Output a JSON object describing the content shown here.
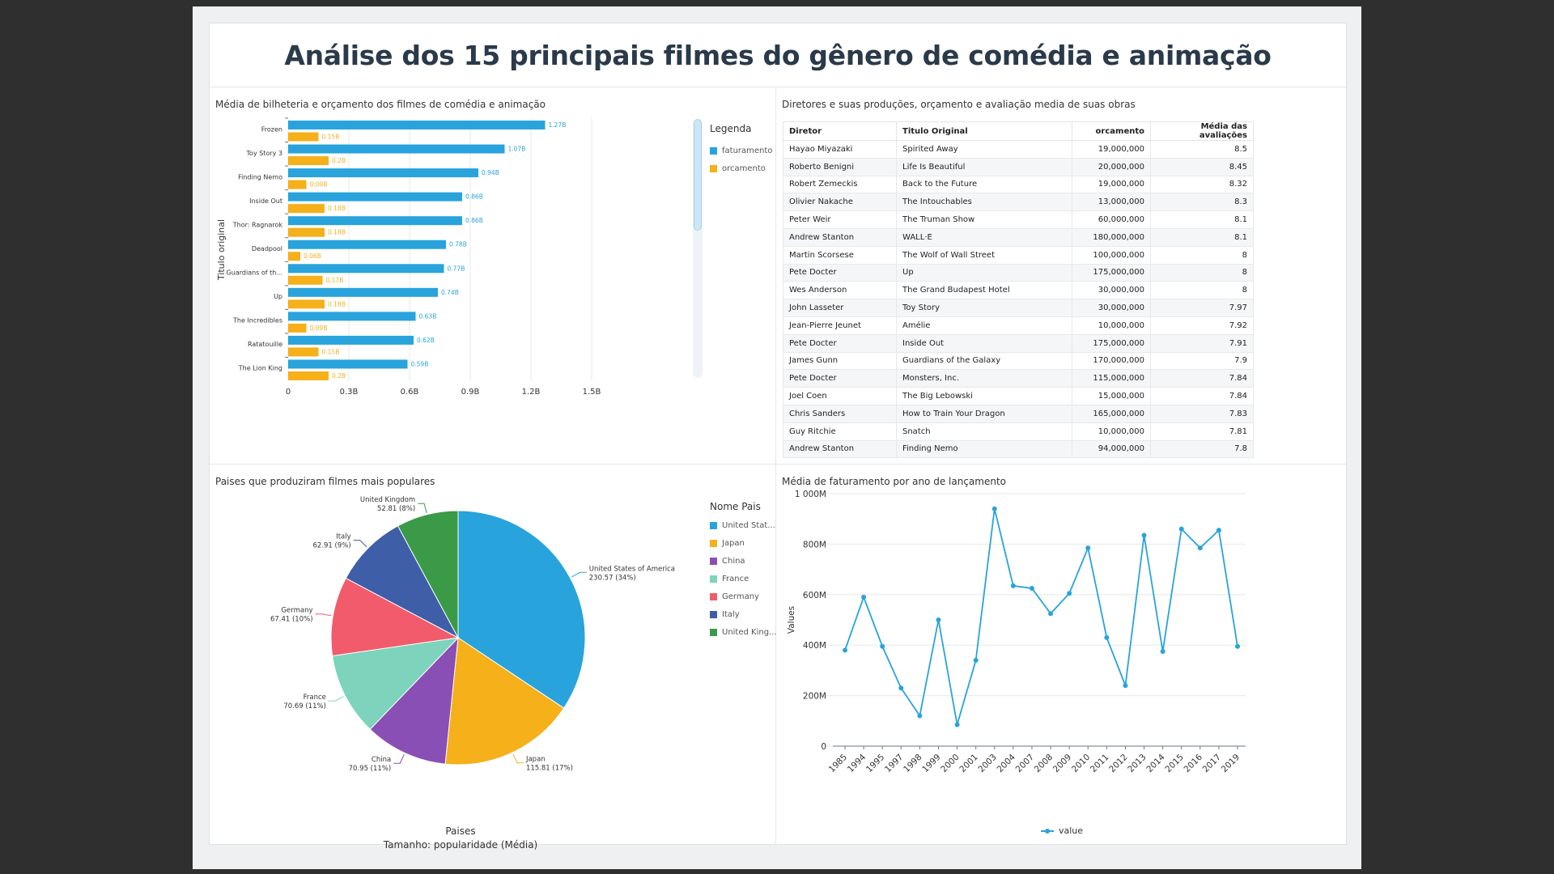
{
  "dashboard": {
    "title": "Análise dos 15 principais filmes do gênero de comédia e animação"
  },
  "bar_panel": {
    "title": "Média de bilheteria e orçamento dos filmes de comédia e animação",
    "legend_title": "Legenda"
  },
  "table_panel": {
    "title": "Diretores e suas produções, orçamento e avaliação media de suas obras",
    "columns": [
      "Diretor",
      "Titulo Original",
      "orcamento",
      "Média das avaliações"
    ],
    "rows": [
      [
        "Hayao Miyazaki",
        "Spirited Away",
        "19,000,000",
        "8.5"
      ],
      [
        "Roberto Benigni",
        "Life Is Beautiful",
        "20,000,000",
        "8.45"
      ],
      [
        "Robert Zemeckis",
        "Back to the Future",
        "19,000,000",
        "8.32"
      ],
      [
        "Olivier Nakache",
        "The Intouchables",
        "13,000,000",
        "8.3"
      ],
      [
        "Peter Weir",
        "The Truman Show",
        "60,000,000",
        "8.1"
      ],
      [
        "Andrew Stanton",
        "WALL·E",
        "180,000,000",
        "8.1"
      ],
      [
        "Martin Scorsese",
        "The Wolf of Wall Street",
        "100,000,000",
        "8"
      ],
      [
        "Pete Docter",
        "Up",
        "175,000,000",
        "8"
      ],
      [
        "Wes Anderson",
        "The Grand Budapest Hotel",
        "30,000,000",
        "8"
      ],
      [
        "John Lasseter",
        "Toy Story",
        "30,000,000",
        "7.97"
      ],
      [
        "Jean-Pierre Jeunet",
        "Amélie",
        "10,000,000",
        "7.92"
      ],
      [
        "Pete Docter",
        "Inside Out",
        "175,000,000",
        "7.91"
      ],
      [
        "James Gunn",
        "Guardians of the Galaxy",
        "170,000,000",
        "7.9"
      ],
      [
        "Pete Docter",
        "Monsters, Inc.",
        "115,000,000",
        "7.84"
      ],
      [
        "Joel Coen",
        "The Big Lebowski",
        "15,000,000",
        "7.84"
      ],
      [
        "Chris Sanders",
        "How to Train Your Dragon",
        "165,000,000",
        "7.83"
      ],
      [
        "Guy Ritchie",
        "Snatch",
        "10,000,000",
        "7.81"
      ],
      [
        "Andrew Stanton",
        "Finding Nemo",
        "94,000,000",
        "7.8"
      ]
    ]
  },
  "pie_panel": {
    "title": "Paises que produziram filmes mais populares",
    "legend_title": "Nome Pais",
    "footer_1": "Paises",
    "footer_2": "Tamanho: popularidade (Média)"
  },
  "line_panel": {
    "title": "Média de faturamento por ano de lançamento",
    "legend_label": "value"
  },
  "colors": {
    "blue": "#29a3dc",
    "orange": "#f5b01a",
    "purple": "#8a4fb5",
    "teal": "#7dd3bb",
    "red": "#f25b6c",
    "navy": "#3f5ea8",
    "green": "#3a9a47"
  },
  "chart_data": [
    {
      "type": "bar",
      "orientation": "horizontal",
      "ylabel": "Titulo original",
      "categories": [
        "Frozen",
        "Toy Story 3",
        "Finding Nemo",
        "Inside Out",
        "Thor: Ragnarok",
        "Deadpool",
        "Guardians of th...",
        "Up",
        "The Incredibles",
        "Ratatouille",
        "The Lion King"
      ],
      "series": [
        {
          "name": "faturamento",
          "color": "#29a3dc",
          "values": [
            1.27,
            1.07,
            0.94,
            0.86,
            0.86,
            0.78,
            0.77,
            0.74,
            0.63,
            0.62,
            0.59
          ],
          "labels": [
            "1.27B",
            "1.07B",
            "0.94B",
            "0.86B",
            "0.86B",
            "0.78B",
            "0.77B",
            "0.74B",
            "0.63B",
            "0.62B",
            "0.59B"
          ]
        },
        {
          "name": "orcamento",
          "color": "#f5b01a",
          "values": [
            0.15,
            0.2,
            0.09,
            0.18,
            0.18,
            0.06,
            0.17,
            0.18,
            0.09,
            0.15,
            0.2
          ],
          "labels": [
            "0.15B",
            "0.2B",
            "0.09B",
            "0.18B",
            "0.18B",
            "0.06B",
            "0.17B",
            "0.18B",
            "0.09B",
            "0.15B",
            "0.2B"
          ]
        }
      ],
      "xlim": [
        0,
        1.5
      ],
      "xticks": [
        0,
        0.3,
        0.6,
        0.9,
        1.2,
        1.5
      ],
      "xtick_labels": [
        "0",
        "0.3B",
        "0.6B",
        "0.9B",
        "1.2B",
        "1.5B"
      ],
      "legend": "right"
    },
    {
      "type": "pie",
      "slices": [
        {
          "name": "United States of America",
          "legend": "United Stat...",
          "value": 230.57,
          "label": "230.57 (34%)",
          "color": "#29a3dc"
        },
        {
          "name": "Japan",
          "legend": "Japan",
          "value": 115.81,
          "label": "115.81 (17%)",
          "color": "#f5b01a"
        },
        {
          "name": "China",
          "legend": "China",
          "value": 70.95,
          "label": "70.95 (11%)",
          "color": "#8a4fb5"
        },
        {
          "name": "France",
          "legend": "France",
          "value": 70.69,
          "label": "70.69 (11%)",
          "color": "#7dd3bb"
        },
        {
          "name": "Germany",
          "legend": "Germany",
          "value": 67.41,
          "label": "67.41 (10%)",
          "color": "#f25b6c"
        },
        {
          "name": "Italy",
          "legend": "Italy",
          "value": 62.91,
          "label": "62.91 (9%)",
          "color": "#3f5ea8"
        },
        {
          "name": "United Kingdom",
          "legend": "United King...",
          "value": 52.81,
          "label": "52.81 (8%)",
          "color": "#3a9a47"
        }
      ],
      "legend": "right"
    },
    {
      "type": "line",
      "ylabel": "Values",
      "x": [
        "1985",
        "1994",
        "1995",
        "1997",
        "1998",
        "1999",
        "2000",
        "2001",
        "2003",
        "2004",
        "2007",
        "2008",
        "2009",
        "2010",
        "2011",
        "2012",
        "2013",
        "2014",
        "2015",
        "2016",
        "2017",
        "2019"
      ],
      "series": [
        {
          "name": "value",
          "color": "#29a3dc",
          "values": [
            380,
            590,
            395,
            230,
            120,
            500,
            85,
            340,
            940,
            635,
            625,
            525,
            605,
            785,
            430,
            240,
            835,
            375,
            860,
            785,
            855,
            395
          ]
        }
      ],
      "ylim": [
        0,
        1000
      ],
      "yticks": [
        0,
        200,
        400,
        600,
        800,
        1000
      ],
      "ytick_labels": [
        "0",
        "200M",
        "400M",
        "600M",
        "800M",
        "1 000M"
      ],
      "grid": true,
      "legend": "bottom"
    }
  ]
}
